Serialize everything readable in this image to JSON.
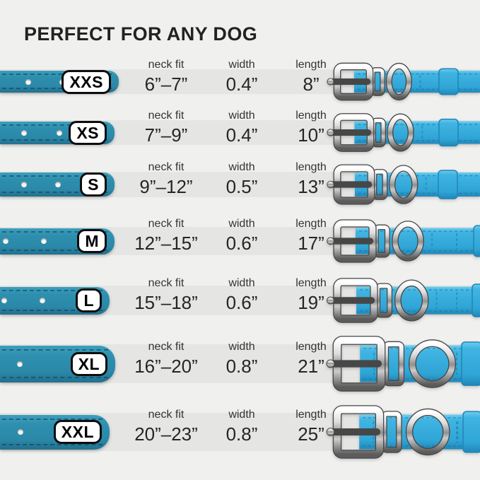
{
  "title": "PERFECT FOR ANY DOG",
  "columns": {
    "neck_fit": "neck fit",
    "width": "width",
    "length": "length"
  },
  "sizes": [
    {
      "size": "XXS",
      "neck_fit": "6”–7”",
      "width": "0.4”",
      "length": "8”"
    },
    {
      "size": "XS",
      "neck_fit": "7”–9”",
      "width": "0.4”",
      "length": "10”"
    },
    {
      "size": "S",
      "neck_fit": "9”–12”",
      "width": "0.5”",
      "length": "13”"
    },
    {
      "size": "M",
      "neck_fit": "12”–15”",
      "width": "0.6”",
      "length": "17”"
    },
    {
      "size": "L",
      "neck_fit": "15”–18”",
      "width": "0.6”",
      "length": "19”"
    },
    {
      "size": "XL",
      "neck_fit": "16”–20”",
      "width": "0.8”",
      "length": "21”"
    },
    {
      "size": "XXL",
      "neck_fit": "20”–23”",
      "width": "0.8”",
      "length": "25”"
    }
  ],
  "colors": {
    "background": "#f0f0ef",
    "row_band": "#e5e5e3",
    "collar_teal_left": "#2e8fae",
    "collar_cyan_right": "#38b0e0",
    "metal_silver": "#c0c0c0",
    "badge_background": "#ffffff",
    "text": "#222222"
  },
  "chart_data": {
    "type": "table",
    "title": "PERFECT FOR ANY DOG",
    "columns": [
      "size",
      "neck fit",
      "width",
      "length"
    ],
    "rows": [
      [
        "XXS",
        "6”–7”",
        "0.4”",
        "8”"
      ],
      [
        "XS",
        "7”–9”",
        "0.4”",
        "10”"
      ],
      [
        "S",
        "9”–12”",
        "0.5”",
        "13”"
      ],
      [
        "M",
        "12”–15”",
        "0.6”",
        "17”"
      ],
      [
        "L",
        "15”–18”",
        "0.6”",
        "19”"
      ],
      [
        "XL",
        "16”–20”",
        "0.8”",
        "21”"
      ],
      [
        "XXL",
        "20”–23”",
        "0.8”",
        "25”"
      ]
    ]
  }
}
